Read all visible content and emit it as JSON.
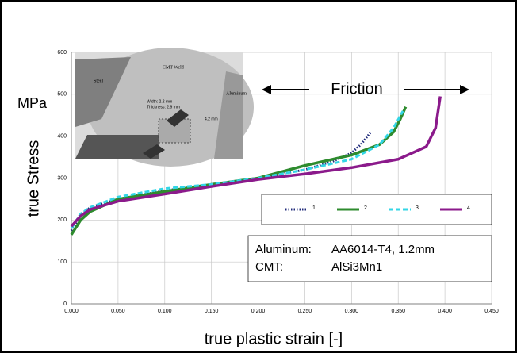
{
  "chart_data": {
    "type": "line",
    "y_unit": "MPa",
    "ylabel": "true Stress",
    "xlabel": "true plastic strain [-]",
    "annotation": "Friction",
    "xlim": [
      0,
      0.45
    ],
    "ylim": [
      0,
      600
    ],
    "xticks": [
      {
        "value": 0,
        "label": "0,000"
      },
      {
        "value": 0.05,
        "label": "0,050"
      },
      {
        "value": 0.1,
        "label": "0,100"
      },
      {
        "value": 0.15,
        "label": "0,150"
      },
      {
        "value": 0.2,
        "label": "0,200"
      },
      {
        "value": 0.25,
        "label": "0,250"
      },
      {
        "value": 0.3,
        "label": "0,300"
      },
      {
        "value": 0.35,
        "label": "0,350"
      },
      {
        "value": 0.4,
        "label": "0,400"
      },
      {
        "value": 0.45,
        "label": "0,450"
      }
    ],
    "yticks": [
      0,
      100,
      200,
      300,
      400,
      500,
      600
    ],
    "grid": true,
    "series": [
      {
        "name": "1",
        "color": "#1f2a7a",
        "style": "dotted",
        "x": [
          0,
          0.01,
          0.02,
          0.05,
          0.1,
          0.15,
          0.2,
          0.25,
          0.28,
          0.3,
          0.31,
          0.32
        ],
        "values": [
          175,
          210,
          230,
          250,
          270,
          285,
          300,
          320,
          340,
          360,
          380,
          408
        ]
      },
      {
        "name": "2",
        "color": "#2e8b2e",
        "style": "solid",
        "x": [
          0,
          0.01,
          0.02,
          0.05,
          0.1,
          0.15,
          0.2,
          0.25,
          0.3,
          0.33,
          0.345,
          0.352,
          0.358
        ],
        "values": [
          165,
          200,
          220,
          250,
          268,
          285,
          300,
          330,
          355,
          380,
          410,
          440,
          470
        ]
      },
      {
        "name": "3",
        "color": "#33d6e6",
        "style": "dashed",
        "x": [
          0,
          0.01,
          0.02,
          0.05,
          0.1,
          0.15,
          0.2,
          0.25,
          0.3,
          0.33,
          0.345,
          0.355
        ],
        "values": [
          180,
          215,
          230,
          255,
          275,
          285,
          300,
          320,
          345,
          380,
          420,
          460
        ]
      },
      {
        "name": "4",
        "color": "#8b1a8b",
        "style": "solid",
        "x": [
          0,
          0.01,
          0.02,
          0.05,
          0.1,
          0.15,
          0.2,
          0.25,
          0.3,
          0.35,
          0.38,
          0.39,
          0.395
        ],
        "values": [
          185,
          210,
          225,
          245,
          262,
          280,
          297,
          310,
          325,
          345,
          375,
          420,
          495
        ]
      }
    ],
    "info_box": [
      [
        "Aluminum:",
        "AA6014-T4, 1.2mm"
      ],
      [
        "CMT:",
        "AlSi3Mn1"
      ]
    ],
    "inset": {
      "steel": "Steel",
      "weld": "CMT Weld",
      "aluminum": "Aluminum",
      "width": "Width: 2.2 mm",
      "thickness": "Thickness: 2.9 mm",
      "height": "4.2 mm"
    }
  }
}
